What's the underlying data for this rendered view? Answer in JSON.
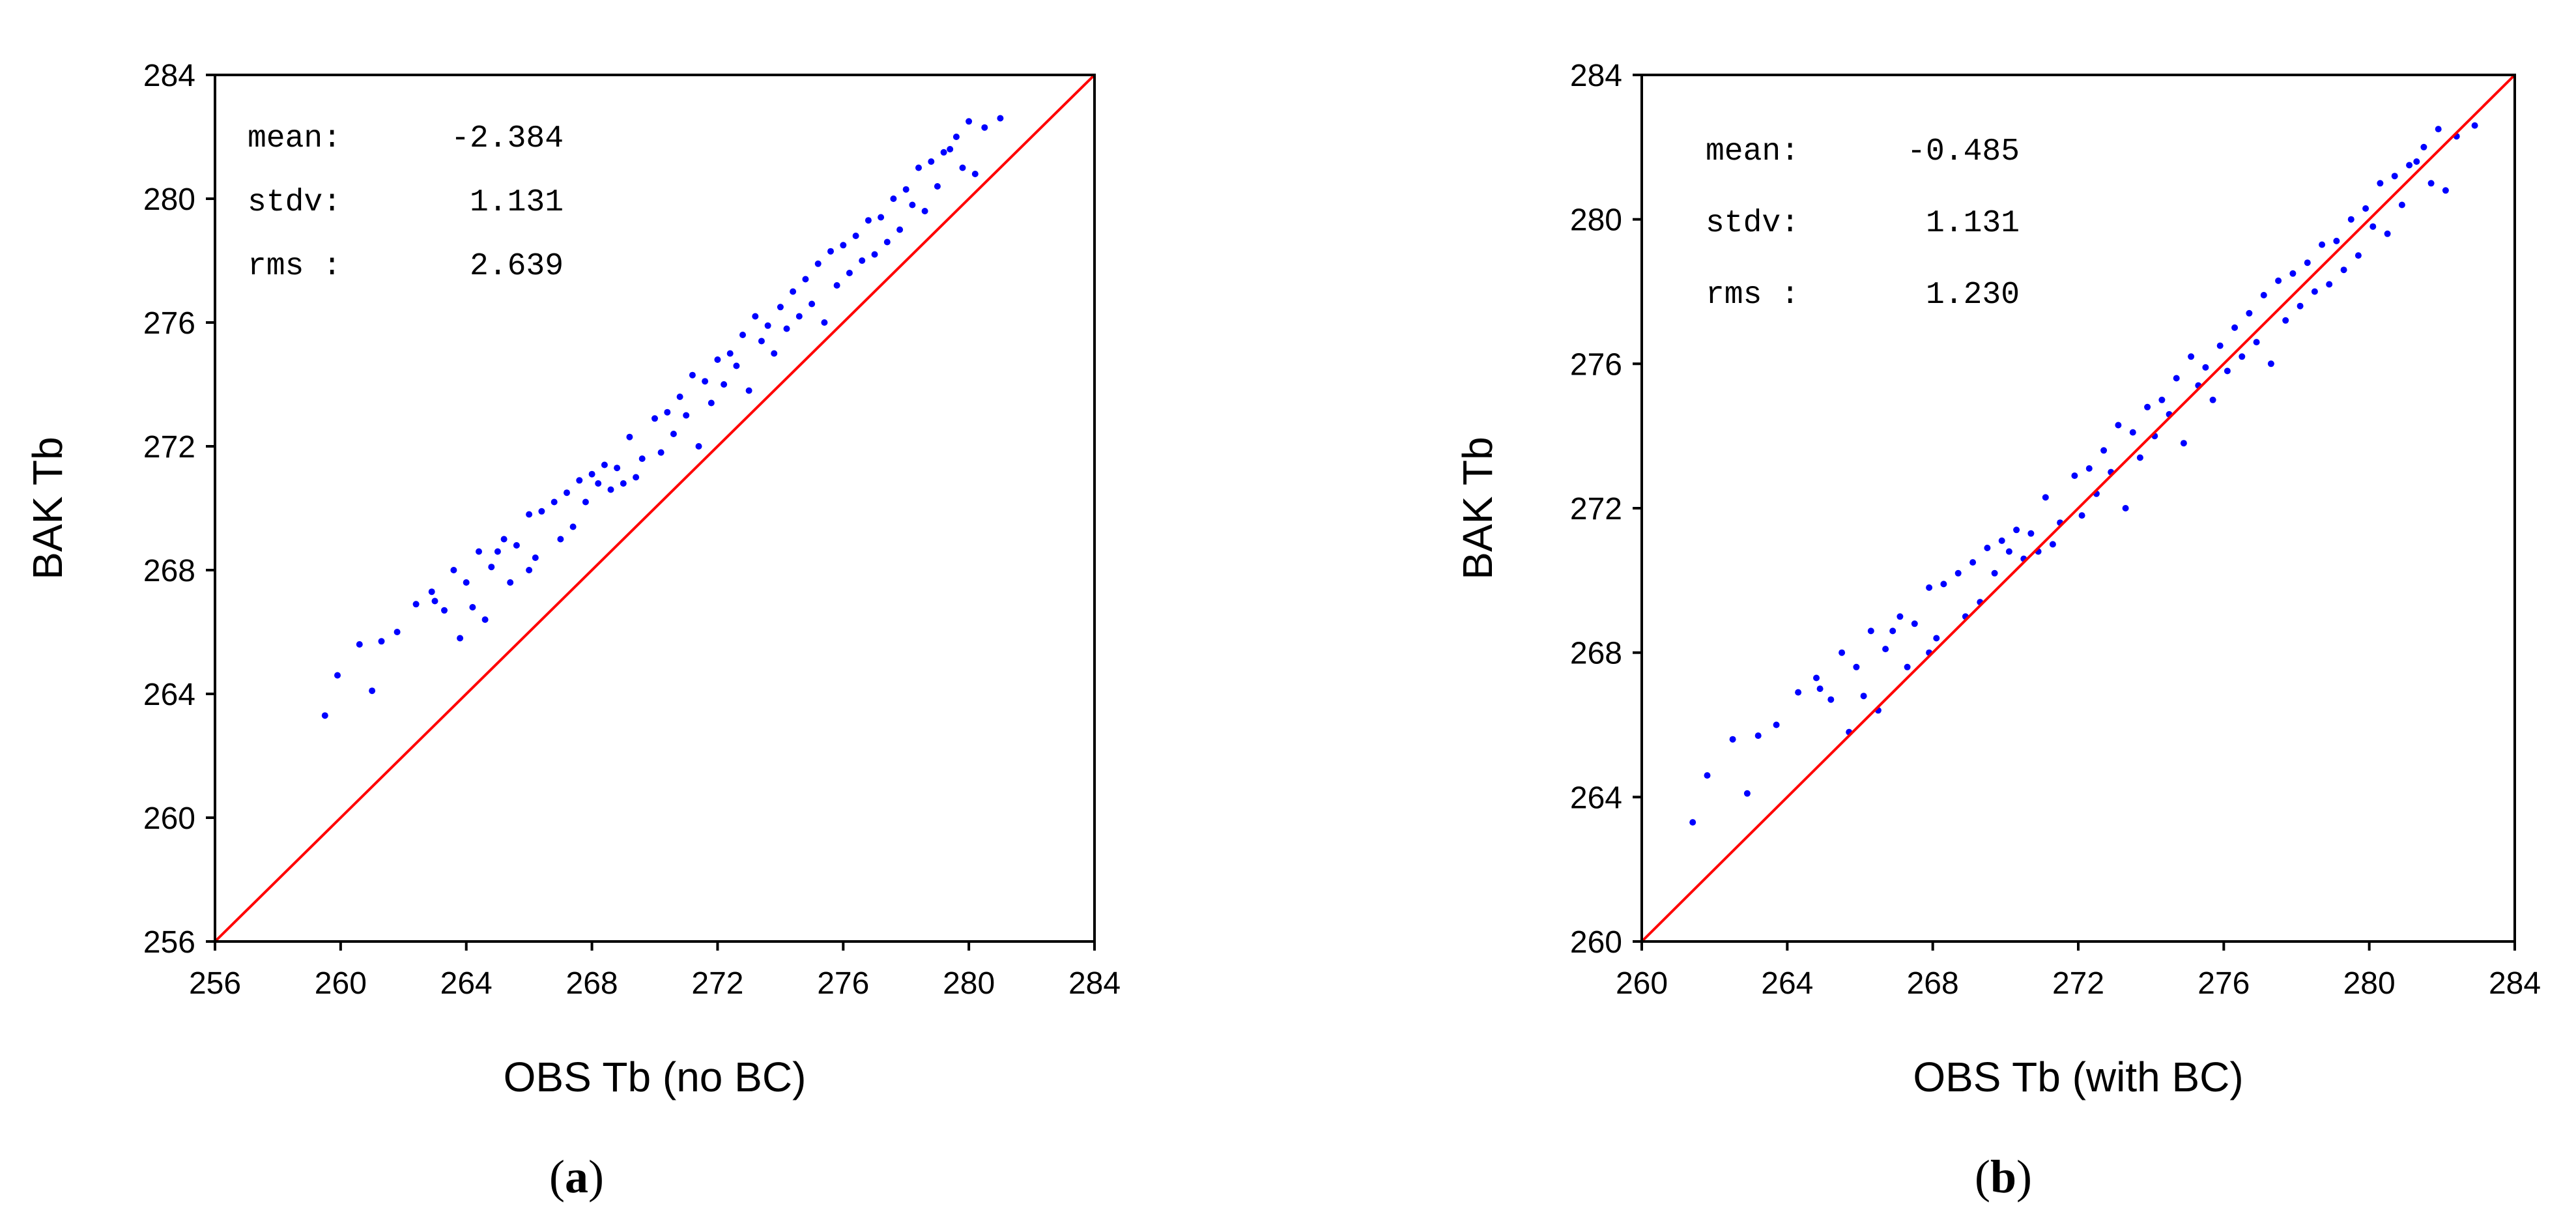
{
  "chart_data": [
    {
      "type": "scatter",
      "panel_label": "a",
      "xlabel": "OBS Tb (no BC)",
      "ylabel": "BAK Tb",
      "xlim": [
        256,
        284
      ],
      "ylim": [
        256,
        284
      ],
      "xticks": [
        "256",
        "260",
        "264",
        "268",
        "272",
        "276",
        "280",
        "284"
      ],
      "yticks": [
        "256",
        "260",
        "264",
        "268",
        "272",
        "276",
        "280",
        "284"
      ],
      "stats": [
        {
          "label": "mean:",
          "value": "-2.384"
        },
        {
          "label": "stdv:",
          "value": "1.131"
        },
        {
          "label": "rms :",
          "value": "2.639"
        }
      ],
      "reference_line": {
        "x": [
          256,
          284
        ],
        "y": [
          256,
          284
        ],
        "color": "#ff0000"
      },
      "marker_color": "#0000ff",
      "line_color": "#ff0000",
      "grid": false,
      "series": [
        {
          "x": [
            259.5,
            259.9,
            260.6,
            261.0,
            261.3,
            261.8,
            262.4,
            262.9,
            263.3,
            263.6,
            264.0,
            264.4,
            264.8,
            265.2,
            265.6,
            266.0,
            266.4,
            266.8,
            267.2,
            267.6,
            268.0,
            268.4,
            268.8,
            269.2,
            269.6,
            270.0,
            270.4,
            270.8,
            271.2,
            271.6,
            272.0,
            272.4,
            272.8,
            273.2,
            273.6,
            274.0,
            274.4,
            274.8,
            275.2,
            275.6,
            276.0,
            276.4,
            276.8,
            277.2,
            277.6,
            278.0,
            278.4,
            278.8,
            279.2,
            279.6,
            280.0,
            280.5,
            281.0,
            263.8,
            264.6,
            265.4,
            266.2,
            267.0,
            267.8,
            268.6,
            269.4,
            270.2,
            271.0,
            271.8,
            272.6,
            273.4,
            274.2,
            275.0,
            275.8,
            276.6,
            277.4,
            278.2,
            279.0,
            279.8,
            263.0,
            264.2,
            265.0,
            266.0,
            267.4,
            268.2,
            269.0,
            270.6,
            271.4,
            272.2,
            273.0,
            273.8,
            274.6,
            275.4,
            276.2,
            277.0,
            277.8,
            278.6,
            279.4,
            280.2
          ],
          "y": [
            263.3,
            264.6,
            265.6,
            264.1,
            265.7,
            266.0,
            266.9,
            267.3,
            266.7,
            268.0,
            267.6,
            268.6,
            268.1,
            269.0,
            268.8,
            269.8,
            269.9,
            270.2,
            270.5,
            270.9,
            271.1,
            271.4,
            271.3,
            272.3,
            271.6,
            272.9,
            273.1,
            273.6,
            274.3,
            274.1,
            274.8,
            275.0,
            275.6,
            276.2,
            275.9,
            276.5,
            277.0,
            277.4,
            277.9,
            278.3,
            278.5,
            278.8,
            279.3,
            279.4,
            280.0,
            280.3,
            281.0,
            281.2,
            281.5,
            282.0,
            282.5,
            282.3,
            282.6,
            265.8,
            266.4,
            267.6,
            268.4,
            269.0,
            270.2,
            270.6,
            271.0,
            271.8,
            273.0,
            273.4,
            274.6,
            275.4,
            275.8,
            276.6,
            277.2,
            278.0,
            278.6,
            279.8,
            280.4,
            281.0,
            267.0,
            266.8,
            268.6,
            268.0,
            269.4,
            270.8,
            270.8,
            272.4,
            272.0,
            274.0,
            273.8,
            275.0,
            276.2,
            276.0,
            277.6,
            278.2,
            279.0,
            279.6,
            281.6,
            280.8
          ]
        }
      ]
    },
    {
      "type": "scatter",
      "panel_label": "b",
      "xlabel": "OBS Tb (with BC)",
      "ylabel": "BAK Tb",
      "xlim": [
        260,
        284
      ],
      "ylim": [
        260,
        284
      ],
      "xticks": [
        "260",
        "264",
        "268",
        "272",
        "276",
        "280",
        "284"
      ],
      "yticks": [
        "260",
        "264",
        "268",
        "272",
        "276",
        "280",
        "284"
      ],
      "stats": [
        {
          "label": "mean:",
          "value": "-0.485"
        },
        {
          "label": "stdv:",
          "value": "1.131"
        },
        {
          "label": "rms :",
          "value": "1.230"
        }
      ],
      "reference_line": {
        "x": [
          260,
          284
        ],
        "y": [
          260,
          284
        ],
        "color": "#ff0000"
      },
      "marker_color": "#0000ff",
      "line_color": "#ff0000",
      "grid": false,
      "series": [
        {
          "x": [
            261.4,
            261.8,
            262.5,
            262.9,
            263.2,
            263.7,
            264.3,
            264.8,
            265.2,
            265.5,
            265.9,
            266.3,
            266.7,
            267.1,
            267.5,
            267.9,
            268.3,
            268.7,
            269.1,
            269.5,
            269.9,
            270.3,
            270.7,
            271.1,
            271.5,
            271.9,
            272.3,
            272.7,
            273.1,
            273.5,
            273.9,
            274.3,
            274.7,
            275.1,
            275.5,
            275.9,
            276.3,
            276.7,
            277.1,
            277.5,
            277.9,
            278.3,
            278.7,
            279.1,
            279.5,
            279.9,
            280.3,
            280.7,
            281.1,
            281.5,
            281.9,
            282.4,
            282.9,
            265.7,
            266.5,
            267.3,
            268.1,
            268.9,
            269.7,
            270.5,
            271.3,
            272.1,
            272.9,
            273.7,
            274.5,
            275.3,
            276.1,
            276.9,
            277.7,
            278.5,
            279.3,
            280.1,
            280.9,
            281.7,
            264.9,
            266.1,
            266.9,
            267.9,
            269.3,
            270.1,
            270.9,
            272.5,
            273.3,
            274.1,
            274.9,
            275.7,
            276.5,
            277.3,
            278.1,
            278.9,
            279.7,
            280.5,
            281.3,
            282.1
          ],
          "y": [
            263.3,
            264.6,
            265.6,
            264.1,
            265.7,
            266.0,
            266.9,
            267.3,
            266.7,
            268.0,
            267.6,
            268.6,
            268.1,
            269.0,
            268.8,
            269.8,
            269.9,
            270.2,
            270.5,
            270.9,
            271.1,
            271.4,
            271.3,
            272.3,
            271.6,
            272.9,
            273.1,
            273.6,
            274.3,
            274.1,
            274.8,
            275.0,
            275.6,
            276.2,
            275.9,
            276.5,
            277.0,
            277.4,
            277.9,
            278.3,
            278.5,
            278.8,
            279.3,
            279.4,
            280.0,
            280.3,
            281.0,
            281.2,
            281.5,
            282.0,
            282.5,
            282.3,
            282.6,
            265.8,
            266.4,
            267.6,
            268.4,
            269.0,
            270.2,
            270.6,
            271.0,
            271.8,
            273.0,
            273.4,
            274.6,
            275.4,
            275.8,
            276.6,
            277.2,
            278.0,
            278.6,
            279.8,
            280.4,
            281.0,
            267.0,
            266.8,
            268.6,
            268.0,
            269.4,
            270.8,
            270.8,
            272.4,
            272.0,
            274.0,
            273.8,
            275.0,
            276.2,
            276.0,
            277.6,
            278.2,
            279.0,
            279.6,
            281.6,
            280.8
          ]
        }
      ]
    }
  ]
}
